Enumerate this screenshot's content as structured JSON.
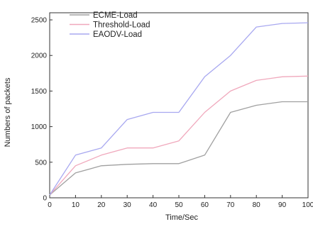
{
  "chart_data": {
    "type": "line",
    "title": "",
    "xlabel": "Time/Sec",
    "ylabel": "Numbers of packets",
    "xlim": [
      0,
      100
    ],
    "ylim": [
      0,
      2600
    ],
    "x_ticks": [
      0,
      10,
      20,
      30,
      40,
      50,
      60,
      70,
      80,
      90,
      100
    ],
    "y_ticks": [
      0,
      500,
      1000,
      1500,
      2000,
      2500
    ],
    "grid": false,
    "legend_position": "top-left",
    "x": [
      0,
      10,
      20,
      30,
      40,
      50,
      60,
      70,
      80,
      90,
      100
    ],
    "series": [
      {
        "name": "ECME-Load",
        "color": "#a0a0a0",
        "values": [
          40,
          350,
          450,
          470,
          480,
          480,
          600,
          1200,
          1300,
          1350,
          1350
        ]
      },
      {
        "name": "Threshold-Load",
        "color": "#f0a8bc",
        "values": [
          40,
          450,
          600,
          700,
          700,
          800,
          1200,
          1500,
          1650,
          1700,
          1710
        ]
      },
      {
        "name": "EAODV-Load",
        "color": "#a8a8f0",
        "values": [
          40,
          600,
          700,
          1100,
          1200,
          1200,
          1700,
          2000,
          2400,
          2450,
          2460
        ]
      }
    ]
  }
}
